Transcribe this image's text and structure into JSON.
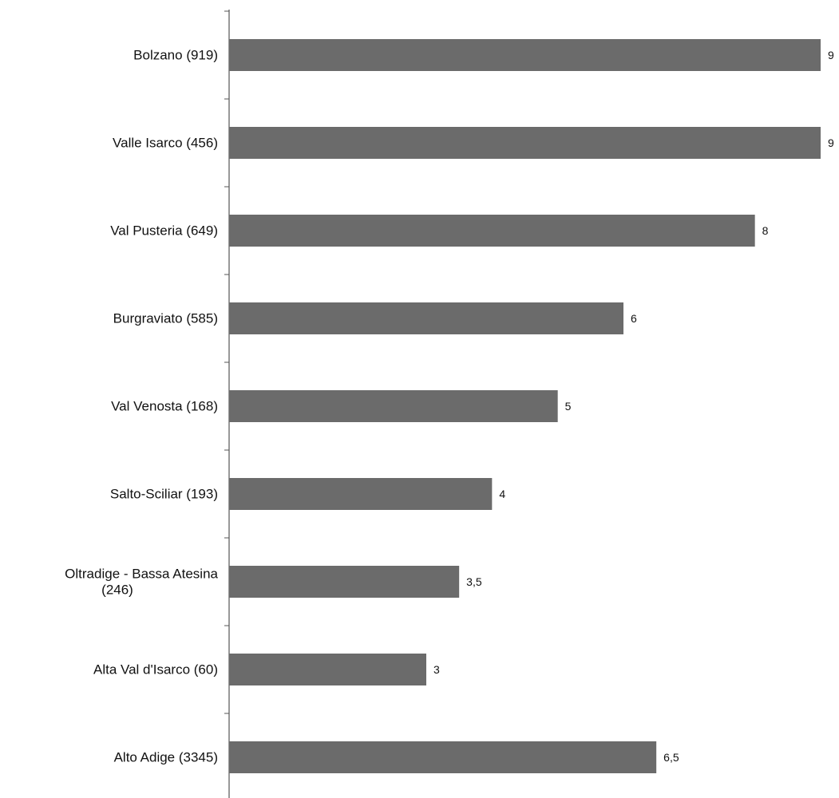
{
  "chart_data": {
    "type": "bar",
    "orientation": "horizontal",
    "categories": [
      [
        "Bolzano (919)"
      ],
      [
        "Valle Isarco (456)"
      ],
      [
        "Val Pusteria (649)"
      ],
      [
        "Burgraviato (585)"
      ],
      [
        "Val Venosta (168)"
      ],
      [
        "Salto-Sciliar (193)"
      ],
      [
        "Oltradige - Bassa Atesina",
        "(246)"
      ],
      [
        "Alta Val d'Isarco (60)"
      ],
      [
        "Alto Adige (3345)"
      ]
    ],
    "values": [
      9,
      9,
      8,
      6,
      5,
      4,
      3.5,
      3,
      6.5
    ],
    "value_labels": [
      "9",
      "9",
      "8",
      "6",
      "5",
      "4",
      "3,5",
      "3",
      "6,5"
    ],
    "xlim": [
      0,
      9
    ],
    "title": "",
    "xlabel": "",
    "ylabel": "",
    "grid": false,
    "legend": "none",
    "bar_color": "#6b6b6b"
  }
}
